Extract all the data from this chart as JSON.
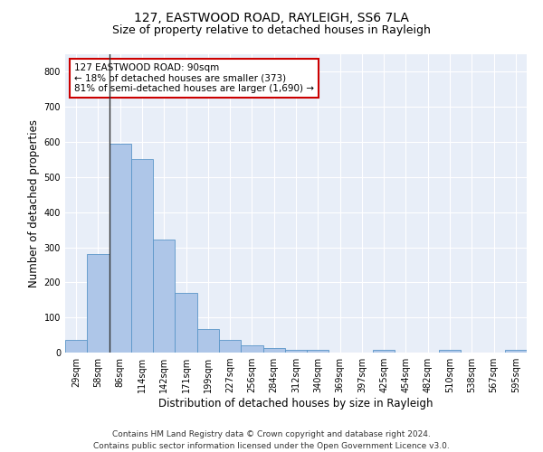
{
  "title": "127, EASTWOOD ROAD, RAYLEIGH, SS6 7LA",
  "subtitle": "Size of property relative to detached houses in Rayleigh",
  "xlabel": "Distribution of detached houses by size in Rayleigh",
  "ylabel": "Number of detached properties",
  "bar_color": "#aec6e8",
  "bar_edge_color": "#5a96c8",
  "background_color": "#e8eef8",
  "grid_color": "#ffffff",
  "annotation_text": "127 EASTWOOD ROAD: 90sqm\n← 18% of detached houses are smaller (373)\n81% of semi-detached houses are larger (1,690) →",
  "vline_color": "#333333",
  "categories": [
    "29sqm",
    "58sqm",
    "86sqm",
    "114sqm",
    "142sqm",
    "171sqm",
    "199sqm",
    "227sqm",
    "256sqm",
    "284sqm",
    "312sqm",
    "340sqm",
    "369sqm",
    "397sqm",
    "425sqm",
    "454sqm",
    "482sqm",
    "510sqm",
    "538sqm",
    "567sqm",
    "595sqm"
  ],
  "values": [
    35,
    280,
    595,
    550,
    323,
    170,
    68,
    35,
    20,
    12,
    8,
    8,
    0,
    0,
    8,
    0,
    0,
    8,
    0,
    0,
    8
  ],
  "ylim": [
    0,
    850
  ],
  "yticks": [
    0,
    100,
    200,
    300,
    400,
    500,
    600,
    700,
    800
  ],
  "footnote": "Contains HM Land Registry data © Crown copyright and database right 2024.\nContains public sector information licensed under the Open Government Licence v3.0.",
  "annotation_box_color": "#ffffff",
  "annotation_box_edge": "#cc0000",
  "title_fontsize": 10,
  "subtitle_fontsize": 9,
  "xlabel_fontsize": 8.5,
  "ylabel_fontsize": 8.5,
  "tick_fontsize": 7,
  "footnote_fontsize": 6.5,
  "annotation_fontsize": 7.5,
  "fig_bg": "#ffffff"
}
